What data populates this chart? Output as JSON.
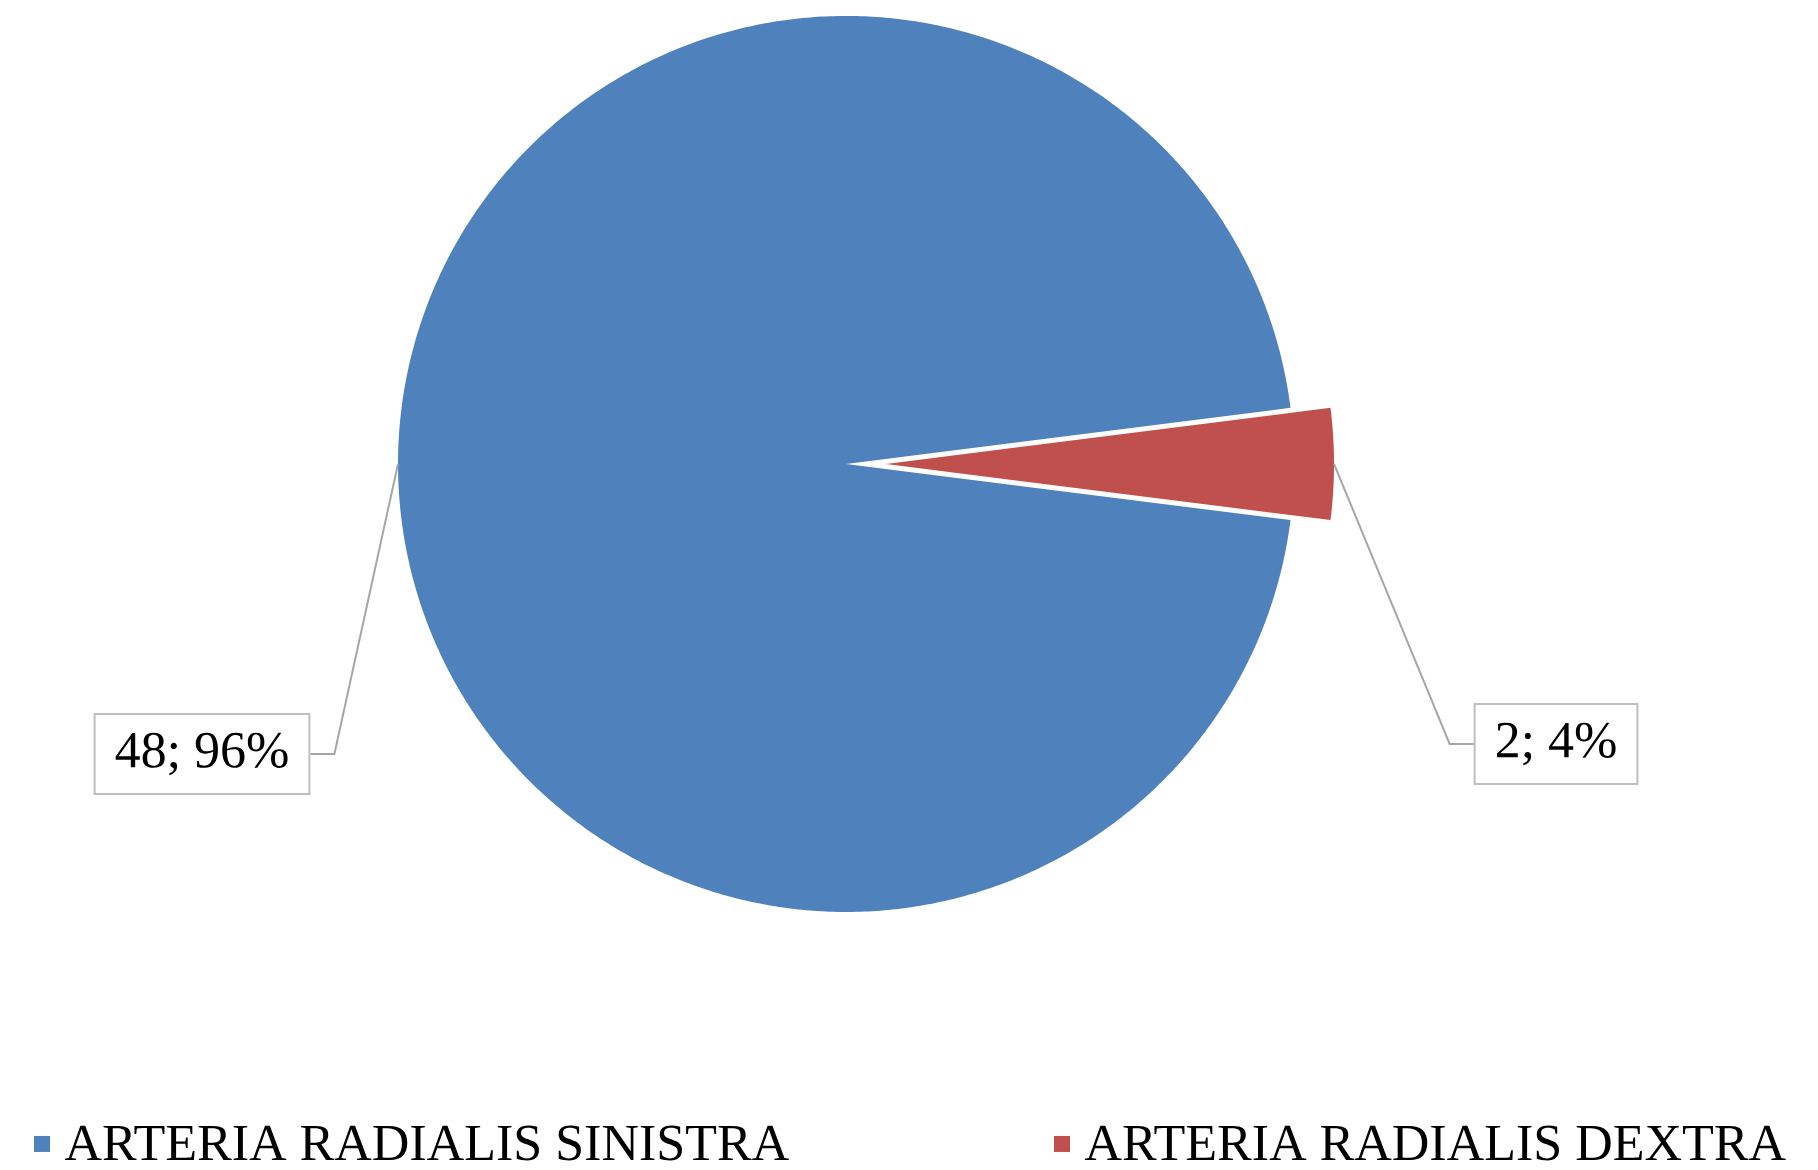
{
  "chart_data": {
    "type": "pie",
    "categories": [
      "ARTERIA RADIALIS SINISTRA",
      "ARTERIA RADIALIS DEXTRA"
    ],
    "values": [
      48,
      2
    ],
    "colors": [
      "#4f81bd",
      "#c0504d"
    ],
    "value_labels": [
      "48; 96%",
      "2; 4%"
    ],
    "legend": "bottom"
  }
}
